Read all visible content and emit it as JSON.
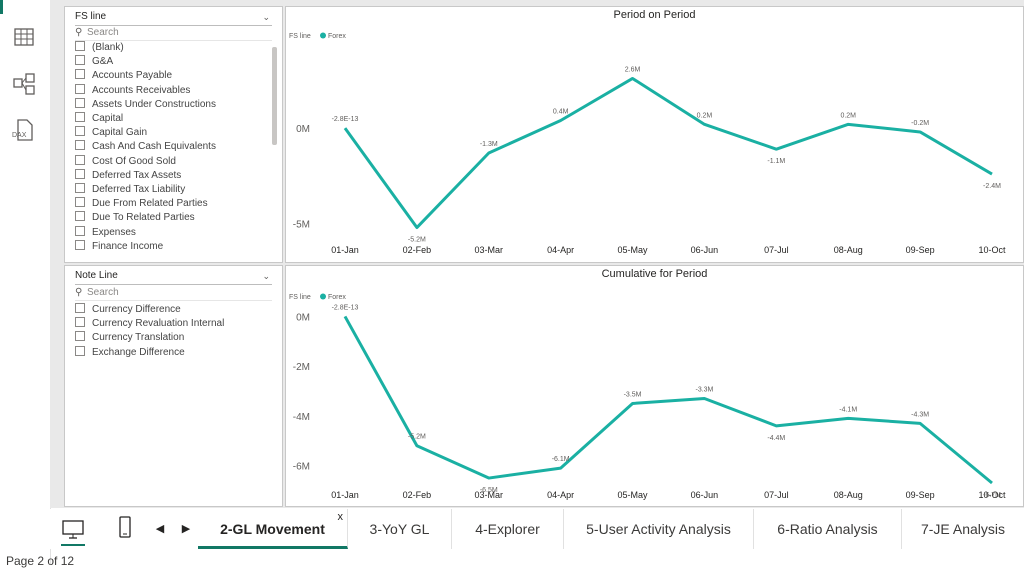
{
  "colors": {
    "accent": "#117865",
    "series": "#1ab0a3"
  },
  "left_rail": {
    "icons": [
      "report-view-icon",
      "data-view-icon",
      "model-view-icon",
      "dax-query-icon"
    ],
    "dax_label": "DAX"
  },
  "slicer_fs": {
    "title": "FS line",
    "search_placeholder": "Search",
    "items": [
      "(Blank)",
      "G&A",
      "Accounts Payable",
      "Accounts Receivables",
      "Assets Under Constructions",
      "Capital",
      "Capital Gain",
      "Cash And Cash Equivalents",
      "Cost Of Good Sold",
      "Deferred Tax Assets",
      "Deferred Tax Liability",
      "Due From Related Parties",
      "Due To Related Parties",
      "Expenses",
      "Finance Income"
    ]
  },
  "slicer_note": {
    "title": "Note Line",
    "search_placeholder": "Search",
    "items": [
      "Currency Difference",
      "Currency Revaluation Internal",
      "Currency Translation",
      "Exchange Difference"
    ]
  },
  "chart_data": [
    {
      "type": "line",
      "title": "Period on Period",
      "legend_title": "FS line",
      "legend_position": "top-left",
      "categories": [
        "01-Jan",
        "02-Feb",
        "03-Mar",
        "04-Apr",
        "05-May",
        "06-Jun",
        "07-Jul",
        "08-Aug",
        "09-Sep",
        "10-Oct"
      ],
      "series": [
        {
          "name": "Forex",
          "values": [
            0,
            -5.2,
            -1.3,
            0.4,
            2.6,
            0.2,
            -1.1,
            0.2,
            -0.2,
            -2.4
          ]
        }
      ],
      "data_labels": [
        "-2.8E-13",
        "-5.2M",
        "-1.3M",
        "0.4M",
        "2.6M",
        "0.2M",
        "-1.1M",
        "0.2M",
        "-0.2M",
        "-2.4M"
      ],
      "y_ticks": [
        {
          "value": 0,
          "label": "0M"
        },
        {
          "value": -5,
          "label": "-5M"
        }
      ],
      "ylim": [
        -5.8,
        3.2
      ],
      "grid": false
    },
    {
      "type": "line",
      "title": "Cumulative for Period",
      "legend_title": "FS line",
      "legend_position": "top-left",
      "categories": [
        "01-Jan",
        "02-Feb",
        "03-Mar",
        "04-Apr",
        "05-May",
        "06-Jun",
        "07-Jul",
        "08-Aug",
        "09-Sep",
        "10-Oct"
      ],
      "series": [
        {
          "name": "Forex",
          "values": [
            0,
            -5.2,
            -6.5,
            -6.1,
            -3.5,
            -3.3,
            -4.4,
            -4.1,
            -4.3,
            -6.7
          ]
        }
      ],
      "data_labels": [
        "-2.8E-13",
        "-5.2M",
        "-6.5M",
        "-6.1M",
        "-3.5M",
        "-3.3M",
        "-4.4M",
        "-4.1M",
        "-4.3M",
        "-6.7M"
      ],
      "y_ticks": [
        {
          "value": 0,
          "label": "0M"
        },
        {
          "value": -2,
          "label": "-2M"
        },
        {
          "value": -4,
          "label": "-4M"
        },
        {
          "value": -6,
          "label": "-6M"
        }
      ],
      "ylim": [
        -6.9,
        0.3
      ],
      "grid": false
    }
  ],
  "page_tabs": {
    "view_icons": [
      "desktop-layout-icon",
      "mobile-layout-icon"
    ],
    "prev_label": "◀",
    "next_label": "▶",
    "close_label": "x",
    "tabs": [
      {
        "label": "2-GL Movement",
        "active": true
      },
      {
        "label": "3-YoY GL",
        "active": false
      },
      {
        "label": "4-Explorer",
        "active": false
      },
      {
        "label": "5-User Activity Analysis",
        "active": false
      },
      {
        "label": "6-Ratio Analysis",
        "active": false
      },
      {
        "label": "7-JE Analysis",
        "active": false
      }
    ]
  },
  "status_bar": {
    "page_text": "Page 2 of 12"
  }
}
